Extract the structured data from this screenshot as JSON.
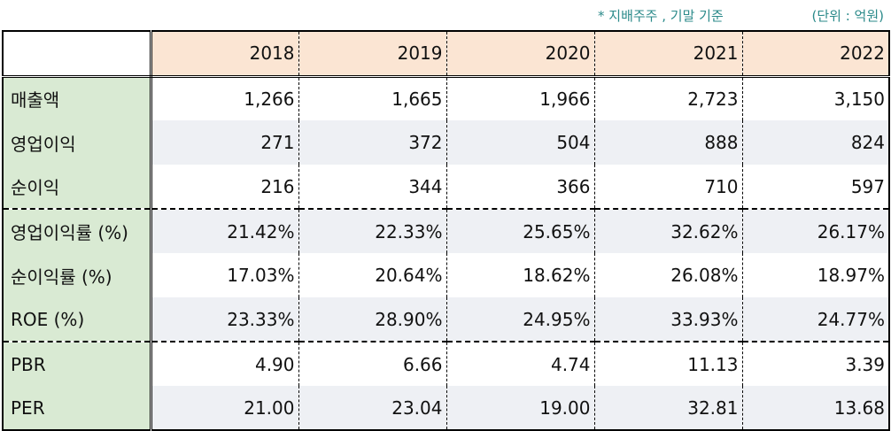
{
  "notes": {
    "basis": "* 지배주주 , 기말 기준",
    "unit": "(단위 : 억원)"
  },
  "table": {
    "years": [
      "2018",
      "2019",
      "2020",
      "2021",
      "2022"
    ],
    "rows": [
      {
        "label": "매출액",
        "values": [
          "1,266",
          "1,665",
          "1,966",
          "2,723",
          "3,150"
        ]
      },
      {
        "label": "영업이익",
        "values": [
          "271",
          "372",
          "504",
          "888",
          "824"
        ]
      },
      {
        "label": "순이익",
        "values": [
          "216",
          "344",
          "366",
          "710",
          "597"
        ]
      },
      {
        "label": "영업이익률 (%)",
        "values": [
          "21.42%",
          "22.33%",
          "25.65%",
          "32.62%",
          "26.17%"
        ]
      },
      {
        "label": "순이익률 (%)",
        "values": [
          "17.03%",
          "20.64%",
          "18.62%",
          "26.08%",
          "18.97%"
        ]
      },
      {
        "label": "ROE (%)",
        "values": [
          "23.33%",
          "28.90%",
          "24.95%",
          "33.93%",
          "24.77%"
        ]
      },
      {
        "label": "PBR",
        "values": [
          "4.90",
          "6.66",
          "4.74",
          "11.13",
          "3.39"
        ]
      },
      {
        "label": "PER",
        "values": [
          "21.00",
          "23.04",
          "19.00",
          "32.81",
          "13.68"
        ]
      }
    ]
  },
  "colors": {
    "header_bg": "#fbe5d3",
    "label_bg": "#d9ead3",
    "shaded_row_bg": "#eef0f4",
    "note_text": "#2b8a8a"
  }
}
